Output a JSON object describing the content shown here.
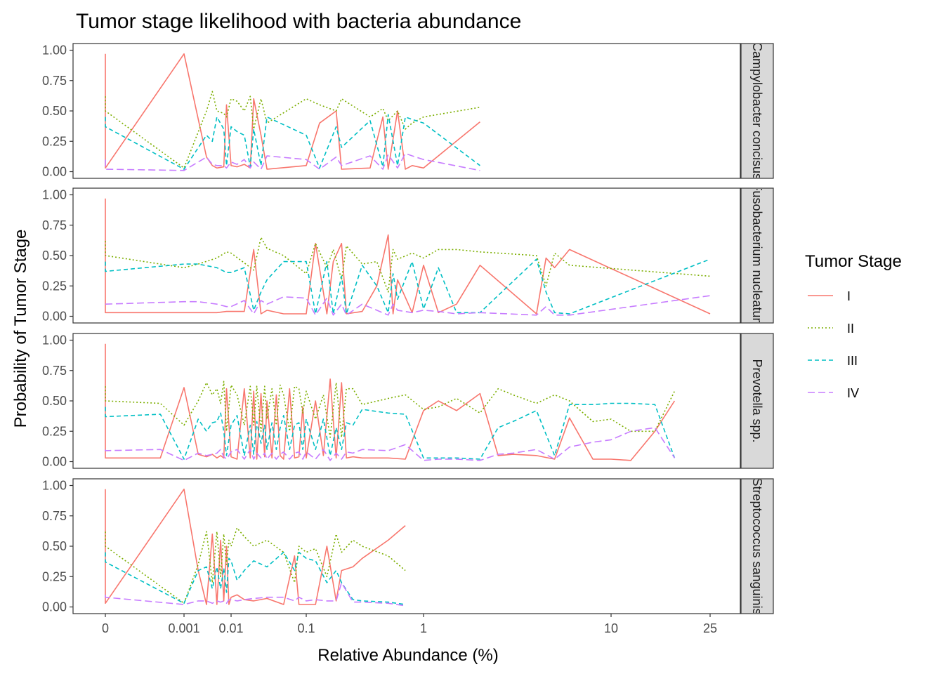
{
  "chart_data": {
    "type": "line",
    "title": "Tumor stage likelihood with bacteria abundance",
    "xlabel": "Relative Abundance (%)",
    "ylabel": "Probability of Tumor Stage",
    "x_scale": "pseudo-log",
    "xlim": [
      0,
      32
    ],
    "ylim": [
      0,
      1
    ],
    "x_ticks": [
      0,
      0.001,
      0.01,
      0.1,
      1,
      10,
      25
    ],
    "x_tick_labels": [
      "0",
      "0.001",
      "0.01",
      "0.1",
      "1",
      "10",
      "25"
    ],
    "y_ticks": [
      0,
      0.25,
      0.5,
      0.75,
      1
    ],
    "y_tick_labels": [
      "0.00",
      "0.25",
      "0.50",
      "0.75",
      "1.00"
    ],
    "legend": {
      "title": "Tumor Stage",
      "position": "right",
      "entries": [
        {
          "label": "I",
          "color": "#F8766D",
          "dash": "solid"
        },
        {
          "label": "II",
          "color": "#7CAE00",
          "dash": "dotted"
        },
        {
          "label": "III",
          "color": "#00BFC4",
          "dash": "dashed"
        },
        {
          "label": "IV",
          "color": "#C77CFF",
          "dash": "longdash"
        }
      ]
    },
    "panels": [
      {
        "strip": "Campylobacter concisus",
        "x": [
          0,
          0,
          0.001,
          0.003,
          0.004,
          0.005,
          0.007,
          0.008,
          0.01,
          0.012,
          0.015,
          0.018,
          0.02,
          0.025,
          0.03,
          0.1,
          0.13,
          0.18,
          0.2,
          0.35,
          0.45,
          0.5,
          0.6,
          0.7,
          0.8,
          1,
          2
        ],
        "series": [
          {
            "name": "I",
            "values": [
              0.97,
              0.03,
              0.97,
              0.12,
              0.05,
              0.03,
              0.04,
              0.55,
              0.05,
              0.04,
              0.06,
              0.03,
              0.6,
              0.3,
              0.02,
              0.05,
              0.4,
              0.5,
              0.02,
              0.03,
              0.45,
              0.02,
              0.5,
              0.02,
              0.05,
              0.03,
              0.41
            ]
          },
          {
            "name": "II",
            "values": [
              0.62,
              0.5,
              0.03,
              0.5,
              0.66,
              0.5,
              0.48,
              0.45,
              0.6,
              0.58,
              0.5,
              0.62,
              0.35,
              0.6,
              0.4,
              0.6,
              0.55,
              0.5,
              0.6,
              0.45,
              0.52,
              0.42,
              0.5,
              0.35,
              0.4,
              0.45,
              0.53
            ]
          },
          {
            "name": "III",
            "values": [
              0.45,
              0.37,
              0.02,
              0.3,
              0.25,
              0.45,
              0.35,
              0.05,
              0.37,
              0.33,
              0.3,
              0.04,
              0.35,
              0.05,
              0.45,
              0.3,
              0.03,
              0.37,
              0.2,
              0.42,
              0.04,
              0.47,
              0.05,
              0.45,
              0.43,
              0.4,
              0.05
            ]
          },
          {
            "name": "IV",
            "values": [
              0.1,
              0.02,
              0.01,
              0.12,
              0.06,
              0.05,
              0.05,
              0.03,
              0.08,
              0.06,
              0.1,
              0.03,
              0.08,
              0.02,
              0.13,
              0.1,
              0.02,
              0.12,
              0.05,
              0.13,
              0.02,
              0.14,
              0.03,
              0.15,
              0.13,
              0.1,
              0.01
            ]
          }
        ]
      },
      {
        "strip": "Fusobacterium nucleatum",
        "x": [
          0,
          0,
          0.001,
          0.002,
          0.005,
          0.008,
          0.01,
          0.015,
          0.02,
          0.025,
          0.03,
          0.05,
          0.1,
          0.12,
          0.15,
          0.17,
          0.2,
          0.22,
          0.3,
          0.4,
          0.5,
          0.55,
          0.6,
          0.8,
          1,
          1.2,
          1.5,
          2,
          4,
          4.5,
          5,
          6,
          25
        ],
        "series": [
          {
            "name": "I",
            "values": [
              0.97,
              0.03,
              0.03,
              0.03,
              0.03,
              0.04,
              0.04,
              0.04,
              0.55,
              0.02,
              0.05,
              0.02,
              0.02,
              0.6,
              0.02,
              0.45,
              0.6,
              0.02,
              0.04,
              0.25,
              0.67,
              0.02,
              0.3,
              0.03,
              0.42,
              0.03,
              0.1,
              0.42,
              0.02,
              0.48,
              0.4,
              0.55,
              0.02
            ]
          },
          {
            "name": "II",
            "values": [
              0.62,
              0.5,
              0.4,
              0.43,
              0.48,
              0.53,
              0.52,
              0.44,
              0.38,
              0.65,
              0.56,
              0.5,
              0.35,
              0.6,
              0.4,
              0.55,
              0.3,
              0.58,
              0.43,
              0.45,
              0.2,
              0.55,
              0.47,
              0.52,
              0.48,
              0.55,
              0.55,
              0.53,
              0.5,
              0.25,
              0.52,
              0.42,
              0.33
            ]
          },
          {
            "name": "III",
            "values": [
              0.45,
              0.37,
              0.43,
              0.43,
              0.4,
              0.36,
              0.36,
              0.4,
              0.05,
              0.2,
              0.3,
              0.45,
              0.45,
              0.02,
              0.45,
              0.02,
              0.33,
              0.02,
              0.42,
              0.25,
              0.03,
              0.35,
              0.14,
              0.45,
              0.06,
              0.4,
              0.03,
              0.03,
              0.47,
              0.2,
              0.03,
              0.02,
              0.47
            ]
          },
          {
            "name": "IV",
            "values": [
              0.1,
              0.1,
              0.12,
              0.12,
              0.1,
              0.08,
              0.08,
              0.13,
              0.02,
              0.13,
              0.1,
              0.16,
              0.15,
              0.01,
              0.15,
              0.01,
              0.1,
              0.01,
              0.1,
              0.05,
              0.01,
              0.1,
              0.05,
              0.03,
              0.05,
              0.04,
              0.02,
              0.03,
              0.01,
              0.08,
              0.01,
              0.01,
              0.17
            ]
          }
        ]
      },
      {
        "strip": "Prevotella spp.",
        "x": [
          0,
          0,
          0.0005,
          0.001,
          0.002,
          0.003,
          0.004,
          0.005,
          0.006,
          0.007,
          0.008,
          0.01,
          0.012,
          0.015,
          0.018,
          0.02,
          0.022,
          0.025,
          0.028,
          0.03,
          0.035,
          0.04,
          0.045,
          0.05,
          0.06,
          0.07,
          0.08,
          0.09,
          0.1,
          0.12,
          0.14,
          0.16,
          0.18,
          0.2,
          0.22,
          0.25,
          0.3,
          0.5,
          0.7,
          1,
          1.2,
          1.5,
          2,
          2.5,
          3,
          4,
          5,
          6,
          8,
          10,
          12,
          15,
          18
        ],
        "series": [
          {
            "name": "I",
            "values": [
              0.97,
              0.03,
              0.03,
              0.61,
              0.06,
              0.04,
              0.06,
              0.03,
              0.05,
              0.03,
              0.6,
              0.04,
              0.02,
              0.6,
              0.03,
              0.58,
              0.02,
              0.56,
              0.04,
              0.5,
              0.03,
              0.55,
              0.05,
              0.02,
              0.6,
              0.03,
              0.04,
              0.45,
              0.03,
              0.5,
              0.05,
              0.68,
              0.03,
              0.65,
              0.03,
              0.04,
              0.03,
              0.03,
              0.02,
              0.42,
              0.5,
              0.42,
              0.56,
              0.05,
              0.06,
              0.05,
              0.02,
              0.36,
              0.02,
              0.02,
              0.01,
              0.25,
              0.5
            ]
          },
          {
            "name": "II",
            "values": [
              0.62,
              0.5,
              0.48,
              0.3,
              0.5,
              0.65,
              0.55,
              0.6,
              0.48,
              0.66,
              0.25,
              0.63,
              0.55,
              0.3,
              0.62,
              0.3,
              0.62,
              0.25,
              0.62,
              0.35,
              0.6,
              0.3,
              0.63,
              0.55,
              0.25,
              0.62,
              0.6,
              0.4,
              0.58,
              0.35,
              0.55,
              0.2,
              0.65,
              0.2,
              0.6,
              0.6,
              0.47,
              0.52,
              0.55,
              0.43,
              0.45,
              0.52,
              0.4,
              0.6,
              0.55,
              0.48,
              0.55,
              0.5,
              0.33,
              0.35,
              0.25,
              0.25,
              0.58
            ]
          },
          {
            "name": "III",
            "values": [
              0.45,
              0.37,
              0.39,
              0.02,
              0.35,
              0.25,
              0.32,
              0.33,
              0.4,
              0.25,
              0.05,
              0.3,
              0.38,
              0.05,
              0.3,
              0.06,
              0.33,
              0.15,
              0.3,
              0.1,
              0.32,
              0.1,
              0.28,
              0.38,
              0.1,
              0.3,
              0.32,
              0.1,
              0.35,
              0.1,
              0.35,
              0.05,
              0.28,
              0.1,
              0.32,
              0.3,
              0.43,
              0.4,
              0.39,
              0.03,
              0.03,
              0.03,
              0.02,
              0.28,
              0.33,
              0.42,
              0.05,
              0.47,
              0.47,
              0.48,
              0.48,
              0.47,
              0.03
            ]
          },
          {
            "name": "IV",
            "values": [
              0.1,
              0.09,
              0.1,
              0.01,
              0.07,
              0.05,
              0.06,
              0.07,
              0.1,
              0.04,
              0.02,
              0.08,
              0.1,
              0.02,
              0.1,
              0.02,
              0.07,
              0.03,
              0.07,
              0.02,
              0.07,
              0.02,
              0.06,
              0.08,
              0.02,
              0.07,
              0.08,
              0.02,
              0.08,
              0.02,
              0.1,
              0.01,
              0.07,
              0.02,
              0.08,
              0.07,
              0.1,
              0.09,
              0.14,
              0.01,
              0.02,
              0.02,
              0.01,
              0.06,
              0.07,
              0.1,
              0.02,
              0.12,
              0.16,
              0.18,
              0.25,
              0.28,
              0.03
            ]
          }
        ]
      },
      {
        "strip": "Streptococcus sanguinis",
        "x": [
          0,
          0,
          0.001,
          0.002,
          0.003,
          0.004,
          0.005,
          0.006,
          0.007,
          0.008,
          0.009,
          0.01,
          0.012,
          0.015,
          0.02,
          0.03,
          0.05,
          0.07,
          0.08,
          0.1,
          0.12,
          0.15,
          0.18,
          0.2,
          0.25,
          0.3,
          0.5,
          0.7
        ],
        "series": [
          {
            "name": "I",
            "values": [
              0.97,
              0.03,
              0.97,
              0.3,
              0.02,
              0.6,
              0.02,
              0.55,
              0.05,
              0.5,
              0.02,
              0.08,
              0.1,
              0.06,
              0.05,
              0.07,
              0.02,
              0.42,
              0.02,
              0.02,
              0.02,
              0.5,
              0.05,
              0.3,
              0.33,
              0.4,
              0.55,
              0.67
            ]
          },
          {
            "name": "II",
            "values": [
              0.62,
              0.5,
              0.03,
              0.35,
              0.62,
              0.2,
              0.62,
              0.25,
              0.6,
              0.35,
              0.55,
              0.5,
              0.65,
              0.58,
              0.5,
              0.55,
              0.45,
              0.2,
              0.5,
              0.45,
              0.48,
              0.25,
              0.6,
              0.45,
              0.55,
              0.5,
              0.42,
              0.3
            ]
          },
          {
            "name": "III",
            "values": [
              0.45,
              0.37,
              0.03,
              0.3,
              0.33,
              0.15,
              0.33,
              0.15,
              0.32,
              0.12,
              0.4,
              0.38,
              0.22,
              0.3,
              0.38,
              0.33,
              0.45,
              0.3,
              0.45,
              0.4,
              0.38,
              0.2,
              0.3,
              0.2,
              0.06,
              0.05,
              0.04,
              0.02
            ]
          },
          {
            "name": "IV",
            "values": [
              0.1,
              0.08,
              0.02,
              0.05,
              0.05,
              0.03,
              0.05,
              0.04,
              0.05,
              0.03,
              0.06,
              0.06,
              0.05,
              0.06,
              0.07,
              0.08,
              0.08,
              0.05,
              0.08,
              0.05,
              0.06,
              0.05,
              0.05,
              0.2,
              0.04,
              0.04,
              0.03,
              0.01
            ]
          }
        ]
      }
    ]
  }
}
